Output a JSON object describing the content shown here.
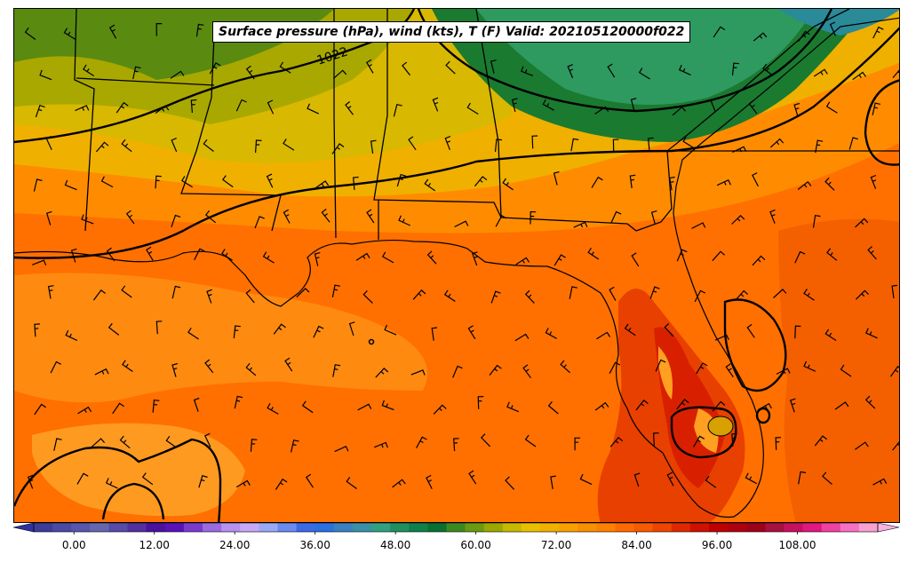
{
  "map": {
    "title": "Surface pressure (hPa), wind (kts), T (F) Valid: 202105120000f022",
    "isobar_label": "1022",
    "region": "US Gulf Coast and Florida",
    "layers": [
      "temperature-fill",
      "isobars",
      "wind-barbs",
      "state-borders",
      "coastlines"
    ]
  },
  "colorbar": {
    "variable": "T (F)",
    "min": -6,
    "max": 120,
    "step": 3,
    "extend": "both",
    "ticks": [
      "0.00",
      "12.00",
      "24.00",
      "36.00",
      "48.00",
      "60.00",
      "72.00",
      "84.00",
      "96.00",
      "108.00"
    ],
    "tick_values": [
      0,
      12,
      24,
      36,
      48,
      60,
      72,
      84,
      96,
      108
    ],
    "colors": [
      "#3b3b9b",
      "#4a4aa6",
      "#5757ad",
      "#6666b0",
      "#5a4aa8",
      "#5230a0",
      "#4a10a0",
      "#5a12b8",
      "#7a3ad0",
      "#9a6ae0",
      "#b890f0",
      "#c8a8f8",
      "#9aa8f8",
      "#6a8af0",
      "#3a6ae8",
      "#2a70e0",
      "#3a80c0",
      "#3a90a8",
      "#30a080",
      "#209060",
      "#10804a",
      "#0a7030",
      "#3a8a20",
      "#6a9a10",
      "#9aa800",
      "#c8b800",
      "#e8c000",
      "#f0b000",
      "#f8a000",
      "#f89000",
      "#ff8000",
      "#ff6a00",
      "#f85a00",
      "#ef4500",
      "#e02800",
      "#d01000",
      "#c00000",
      "#b00010",
      "#a00018",
      "#a81040",
      "#c81060",
      "#e01880",
      "#f040a0",
      "#f870c0",
      "#f8a0d0"
    ]
  }
}
